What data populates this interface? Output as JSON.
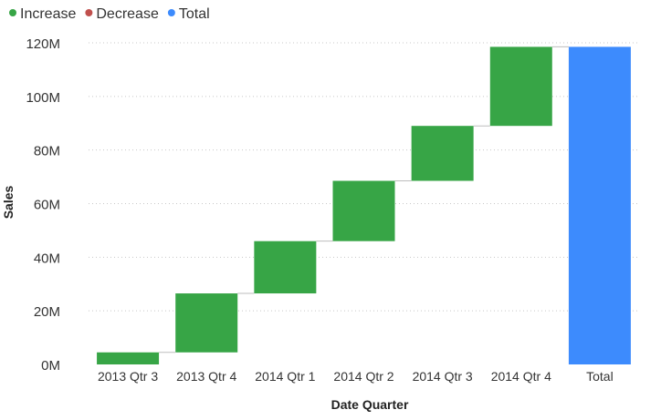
{
  "chart_data": {
    "type": "waterfall",
    "legend": [
      {
        "name": "Increase",
        "color": "#37a546"
      },
      {
        "name": "Decrease",
        "color": "#c0504d"
      },
      {
        "name": "Total",
        "color": "#3d8bfd"
      }
    ],
    "legend_position": "top-left",
    "xlabel": "Date Quarter",
    "ylabel": "Sales",
    "categories": [
      "2013 Qtr 3",
      "2013 Qtr 4",
      "2014 Qtr 1",
      "2014 Qtr 2",
      "2014 Qtr 3",
      "2014 Qtr 4",
      "Total"
    ],
    "changes": [
      4.5,
      22,
      19.5,
      22.5,
      20.5,
      29.5
    ],
    "total": 118.5,
    "value_unit": "M",
    "ylim": [
      0,
      120
    ],
    "yticks": [
      0,
      20,
      40,
      60,
      80,
      100,
      120
    ],
    "ytick_labels": [
      "0M",
      "20M",
      "40M",
      "60M",
      "80M",
      "100M",
      "120M"
    ],
    "grid": true
  }
}
